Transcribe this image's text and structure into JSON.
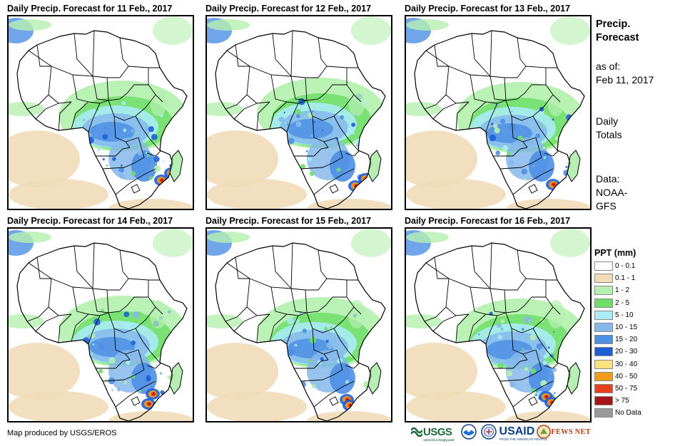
{
  "panels": [
    {
      "title": "Daily Precip. Forecast for 11 Feb., 2017"
    },
    {
      "title": "Daily Precip. Forecast for 12 Feb., 2017"
    },
    {
      "title": "Daily Precip. Forecast for 13 Feb., 2017"
    },
    {
      "title": "Daily Precip. Forecast for 14 Feb., 2017"
    },
    {
      "title": "Daily Precip. Forecast for 15 Feb., 2017"
    },
    {
      "title": "Daily Precip. Forecast for 16 Feb., 2017"
    }
  ],
  "sidebar": {
    "title_line1": "Precip.",
    "title_line2": "Forecast",
    "asof_label": "as of:",
    "asof_date": "Feb 11, 2017",
    "totals_line1": "Daily",
    "totals_line2": "Totals",
    "data_line1": "Data:",
    "data_line2": "NOAA-",
    "data_line3": "GFS"
  },
  "legend": {
    "title": "PPT (mm)",
    "items": [
      {
        "label": "0 - 0.1",
        "color": "#ffffff"
      },
      {
        "label": "0.1 - 1",
        "color": "#f1dcb8"
      },
      {
        "label": "1 - 2",
        "color": "#b6f0b0"
      },
      {
        "label": "2 - 5",
        "color": "#6ede6a"
      },
      {
        "label": "5 - 10",
        "color": "#a9ecf5"
      },
      {
        "label": "10 - 15",
        "color": "#86b8ec"
      },
      {
        "label": "15 - 20",
        "color": "#4d8fe4"
      },
      {
        "label": "20 - 30",
        "color": "#1f5fd6"
      },
      {
        "label": "30 - 40",
        "color": "#fbe27d"
      },
      {
        "label": "40 - 50",
        "color": "#f39a16"
      },
      {
        "label": "50 - 75",
        "color": "#e8401a"
      },
      {
        "label": "> 75",
        "color": "#a81414"
      },
      {
        "label": "No Data",
        "color": "#999999"
      }
    ]
  },
  "footer": {
    "credit": "Map produced by USGS/EROS",
    "logo_usgs": "USGS",
    "logo_usgs_tagline": "science for a changing world",
    "logo_usaid": "USAID",
    "logo_usaid_tagline": "FROM THE AMERICAN PEOPLE",
    "logo_fews": "FEWS NET"
  }
}
